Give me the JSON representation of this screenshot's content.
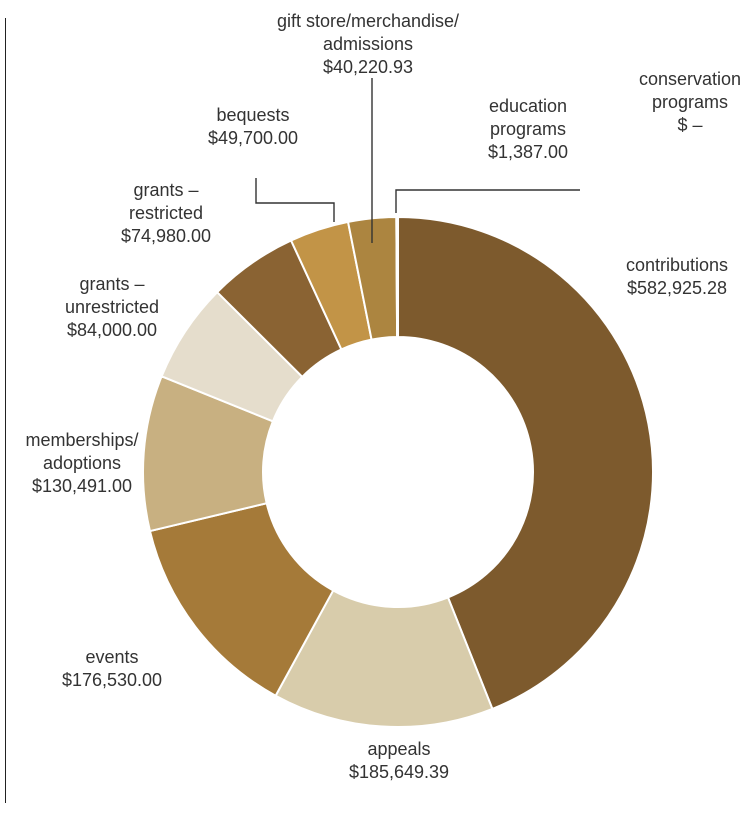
{
  "chart_data": {
    "type": "pie",
    "style": "donut",
    "title": "",
    "total": 1325883.6,
    "slices": [
      {
        "category": "contributions",
        "label_lines": [
          "contributions"
        ],
        "amount_text": "$582,925.28",
        "value": 582925.28,
        "color": "#7d5a2d"
      },
      {
        "category": "appeals",
        "label_lines": [
          "appeals"
        ],
        "amount_text": "$185,649.39",
        "value": 185649.39,
        "color": "#d8ccab"
      },
      {
        "category": "events",
        "label_lines": [
          "events"
        ],
        "amount_text": "$176,530.00",
        "value": 176530.0,
        "color": "#a57a39"
      },
      {
        "category": "memberships/ adoptions",
        "label_lines": [
          "memberships/",
          "adoptions"
        ],
        "amount_text": "$130,491.00",
        "value": 130491.0,
        "color": "#c8b081"
      },
      {
        "category": "grants – unrestricted",
        "label_lines": [
          "grants –",
          "unrestricted"
        ],
        "amount_text": "$84,000.00",
        "value": 84000.0,
        "color": "#e5ddcc"
      },
      {
        "category": "grants – restricted",
        "label_lines": [
          "grants –",
          "restricted"
        ],
        "amount_text": "$74,980.00",
        "value": 74980.0,
        "color": "#8a6333"
      },
      {
        "category": "bequests",
        "label_lines": [
          "bequests"
        ],
        "amount_text": "$49,700.00",
        "value": 49700.0,
        "color": "#c29447"
      },
      {
        "category": "gift store/merchandise/ admissions",
        "label_lines": [
          "gift store/merchandise/",
          "admissions"
        ],
        "amount_text": "$40,220.93",
        "value": 40220.93,
        "color": "#ac8540"
      },
      {
        "category": "education programs",
        "label_lines": [
          "education",
          "programs"
        ],
        "amount_text": "$1,387.00",
        "value": 1387.0,
        "color": "#e9dfc9"
      },
      {
        "category": "conservation programs",
        "label_lines": [
          "conservation",
          "programs"
        ],
        "amount_text": "$ –",
        "value": 0,
        "color": "#8a6333"
      }
    ]
  }
}
